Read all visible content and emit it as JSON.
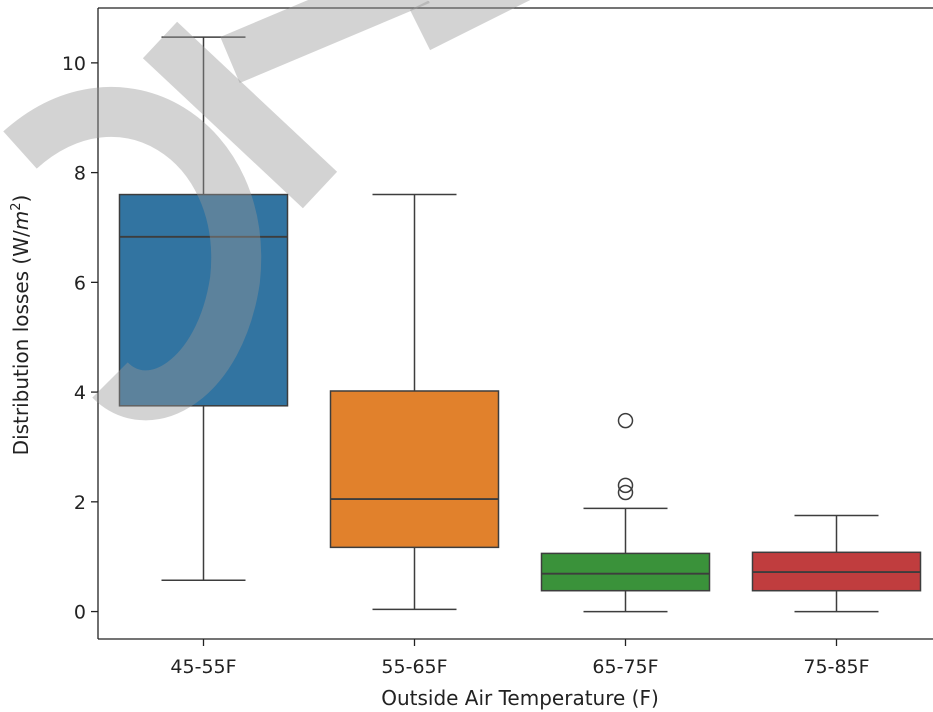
{
  "chart_data": {
    "type": "box",
    "title": "",
    "xlabel": "Outside Air Temperature (F)",
    "ylabel_prefix": "Distribution losses (W/",
    "ylabel_unit_base": "m",
    "ylabel_unit_exp": "2",
    "ylabel_suffix": ")",
    "ylim": [
      -0.5,
      11
    ],
    "yticks": [
      0,
      2,
      4,
      6,
      8,
      10
    ],
    "ytick_labels": [
      "0",
      "2",
      "4",
      "6",
      "8",
      "10"
    ],
    "grid": false,
    "legend": "none",
    "categories": [
      "45-55F",
      "55-65F",
      "65-75F",
      "75-85F"
    ],
    "boxes": [
      {
        "category": "45-55F",
        "color": "#3274a1",
        "whisker_low": 0.57,
        "q1": 3.75,
        "median": 6.83,
        "q3": 7.6,
        "whisker_high": 10.47,
        "outliers": []
      },
      {
        "category": "55-65F",
        "color": "#e1812c",
        "whisker_low": 0.04,
        "q1": 1.17,
        "median": 2.05,
        "q3": 4.02,
        "whisker_high": 7.6,
        "outliers": []
      },
      {
        "category": "65-75F",
        "color": "#3a923a",
        "whisker_low": 0.0,
        "q1": 0.38,
        "median": 0.69,
        "q3": 1.06,
        "whisker_high": 1.88,
        "outliers": [
          2.17,
          2.3,
          3.48
        ]
      },
      {
        "category": "75-85F",
        "color": "#c03d3e",
        "whisker_low": 0.0,
        "q1": 0.38,
        "median": 0.72,
        "q3": 1.08,
        "whisker_high": 1.75,
        "outliers": []
      }
    ]
  }
}
